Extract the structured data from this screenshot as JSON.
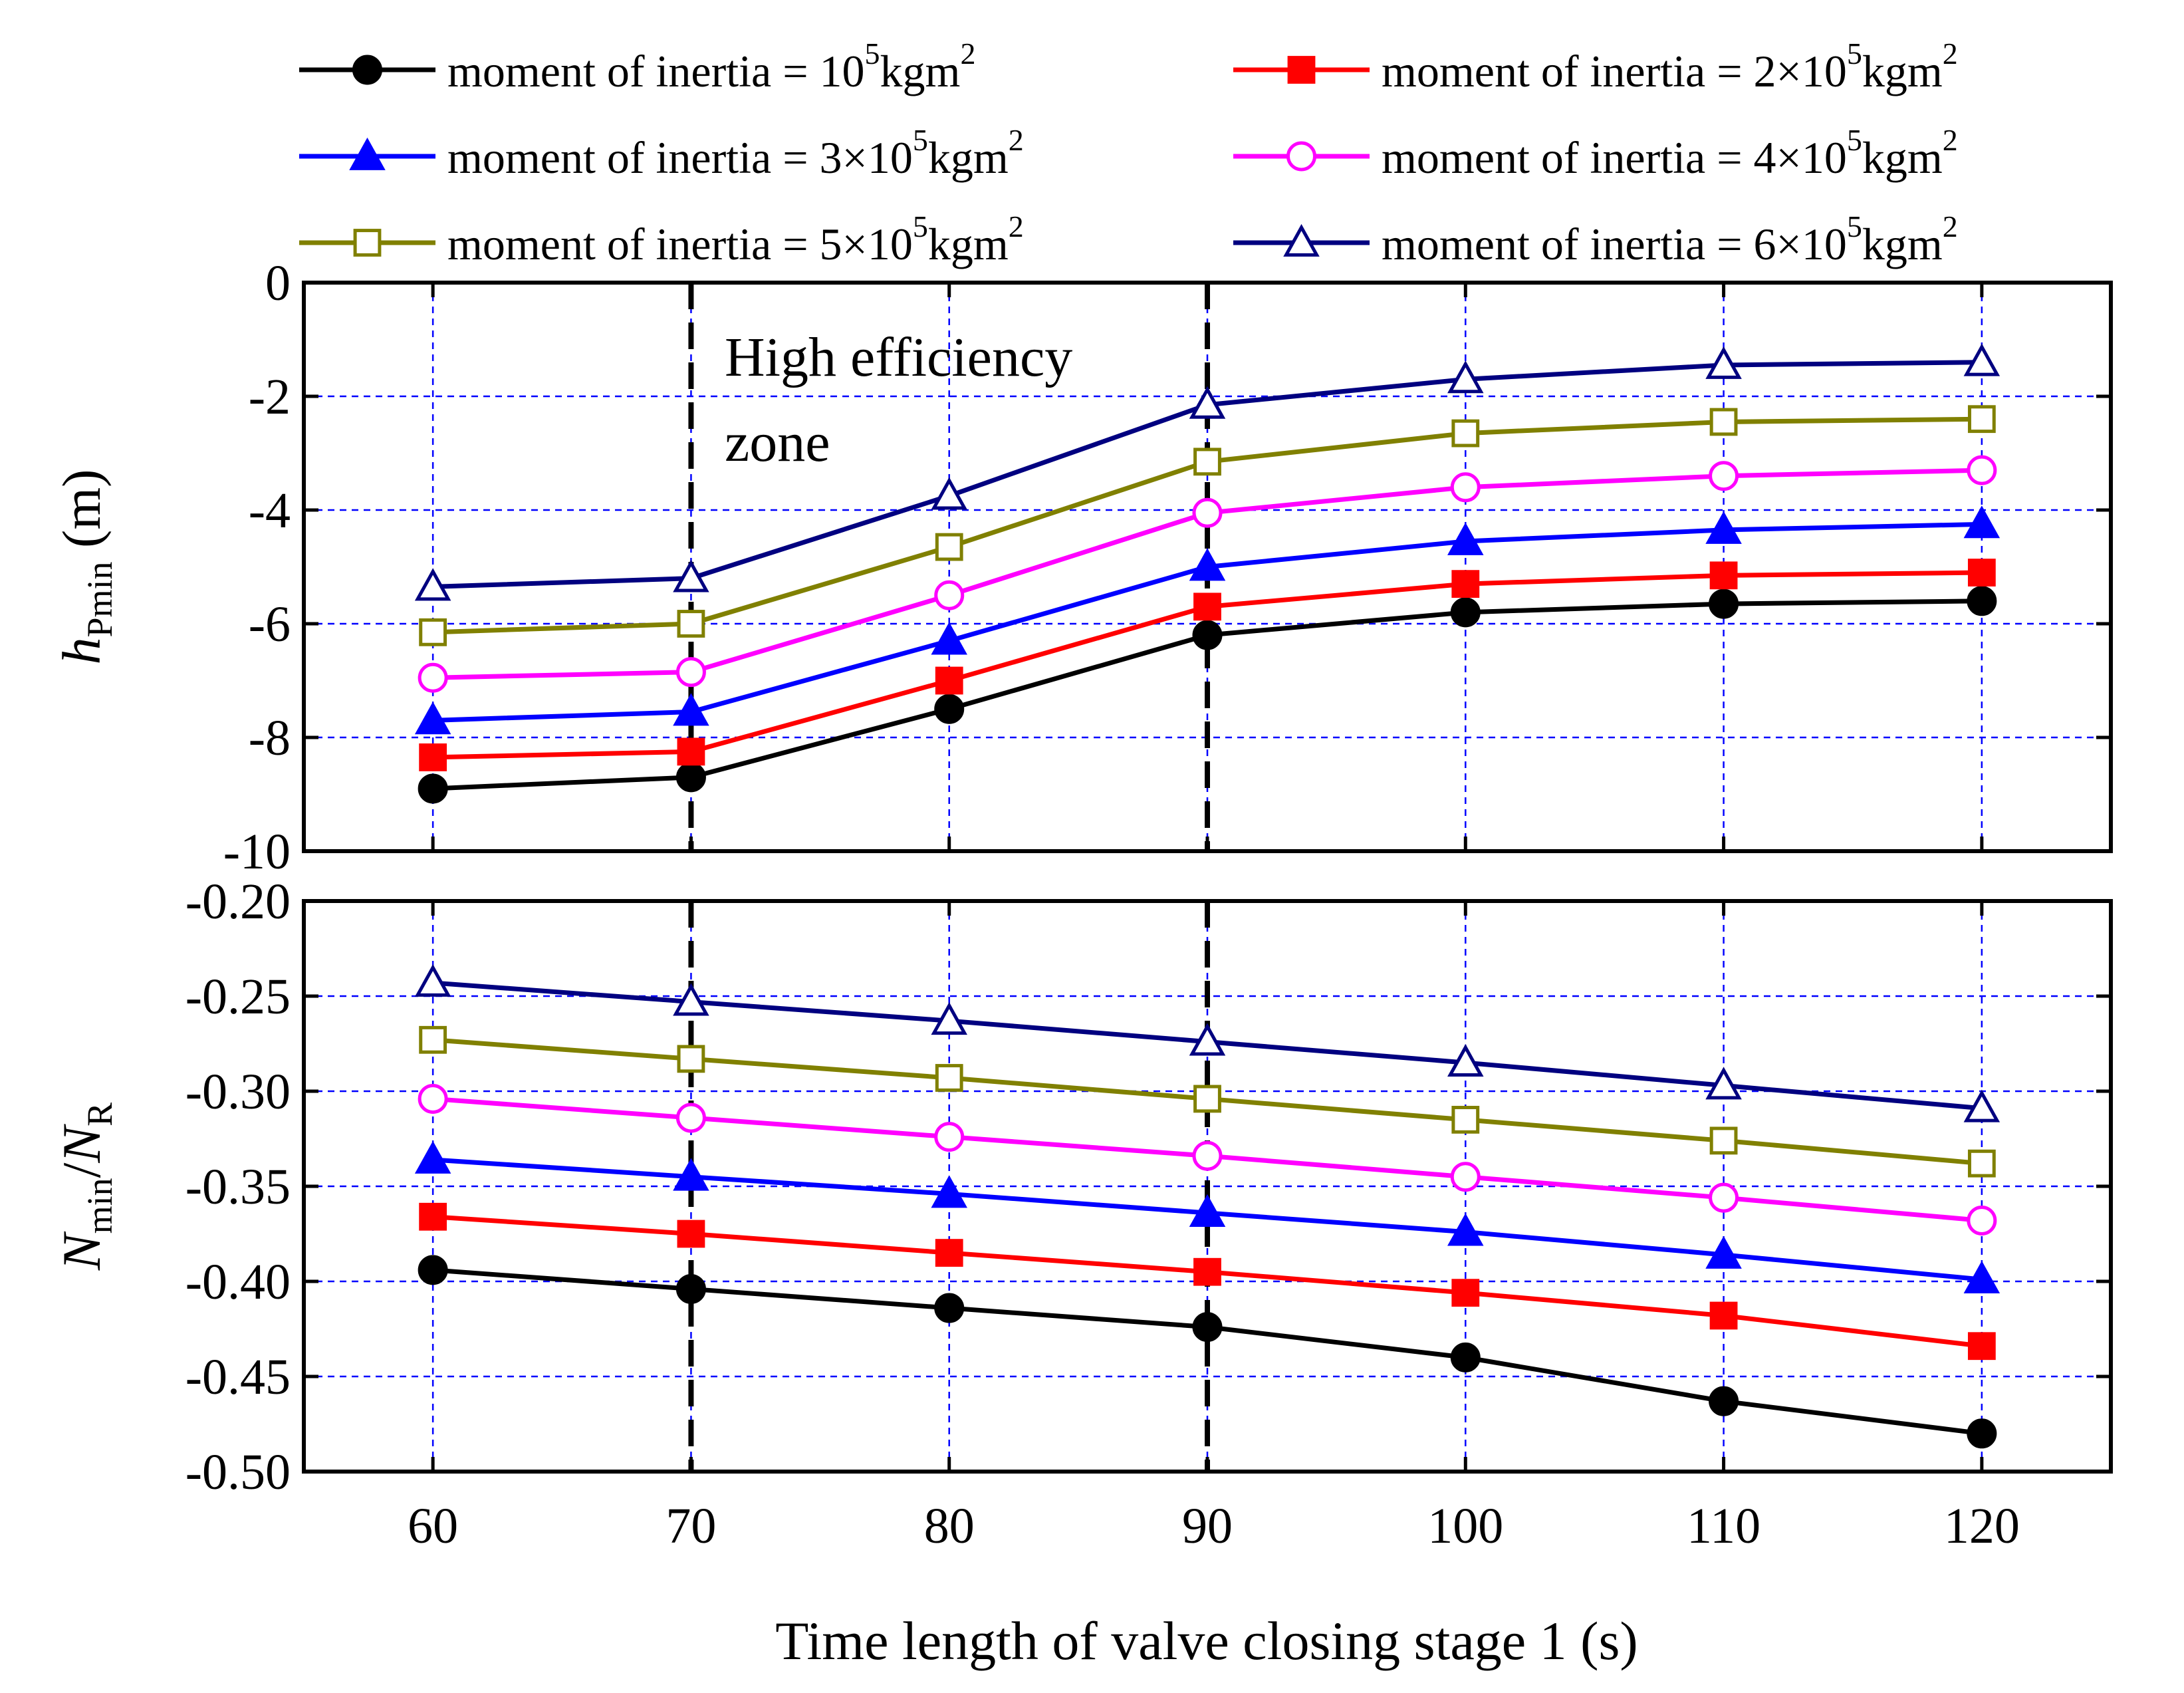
{
  "chart_data": {
    "type": "line",
    "xlabel": "Time length of valve closing stage 1 (s)",
    "x": [
      60,
      70,
      80,
      90,
      100,
      110,
      120
    ],
    "xticks": [
      "60",
      "70",
      "80",
      "90",
      "100",
      "110",
      "120"
    ],
    "xlim": [
      55,
      125
    ],
    "legend": {
      "position": "top",
      "prefix": "moment of inertia = ",
      "unit": "kgm",
      "unit_sup": "2",
      "times": "×",
      "base": "10",
      "exp": "5"
    },
    "series": [
      {
        "name": "moment of inertia = 10^5 kgm^2",
        "coef": "",
        "color": "#000000",
        "marker": "circle",
        "filled": true
      },
      {
        "name": "moment of inertia = 2×10^5 kgm^2",
        "coef": "2",
        "color": "#ff0000",
        "marker": "square",
        "filled": true
      },
      {
        "name": "moment of inertia = 3×10^5 kgm^2",
        "coef": "3",
        "color": "#0000ff",
        "marker": "triangle",
        "filled": true
      },
      {
        "name": "moment of inertia = 4×10^5 kgm^2",
        "coef": "4",
        "color": "#ff00ff",
        "marker": "circle",
        "filled": false
      },
      {
        "name": "moment of inertia = 5×10^5 kgm^2",
        "coef": "5",
        "color": "#808000",
        "marker": "square",
        "filled": false
      },
      {
        "name": "moment of inertia = 6×10^5 kgm^2",
        "coef": "6",
        "color": "#000080",
        "marker": "triangle",
        "filled": false
      }
    ],
    "panels": [
      {
        "id": "top",
        "ylabel_main": "h",
        "ylabel_sub": "Pmin",
        "ylabel_unit": "(m)",
        "ylim": [
          -10,
          0
        ],
        "yticks": [
          "0",
          "-2",
          "-4",
          "-6",
          "-8",
          "-10"
        ],
        "ytick_values": [
          0,
          -2,
          -4,
          -6,
          -8,
          -10
        ],
        "annotation": [
          "High efficiency",
          "zone"
        ],
        "values": [
          [
            -8.9,
            -8.7,
            -7.5,
            -6.2,
            -5.8,
            -5.65,
            -5.6
          ],
          [
            -8.35,
            -8.25,
            -7.0,
            -5.7,
            -5.3,
            -5.15,
            -5.1
          ],
          [
            -7.7,
            -7.55,
            -6.3,
            -5.0,
            -4.55,
            -4.35,
            -4.25
          ],
          [
            -6.95,
            -6.85,
            -5.5,
            -4.05,
            -3.6,
            -3.4,
            -3.3
          ],
          [
            -6.15,
            -6.0,
            -4.65,
            -3.15,
            -2.65,
            -2.45,
            -2.4
          ],
          [
            -5.35,
            -5.2,
            -3.75,
            -2.15,
            -1.7,
            -1.45,
            -1.4
          ]
        ]
      },
      {
        "id": "bottom",
        "ylabel_main": "N",
        "ylabel_sub": "min",
        "ylabel_div": "/N",
        "ylabel_sub2": "R",
        "ylim": [
          -0.5,
          -0.2
        ],
        "yticks": [
          "-0.20",
          "-0.25",
          "-0.30",
          "-0.35",
          "-0.40",
          "-0.45",
          "-0.50"
        ],
        "ytick_values": [
          -0.2,
          -0.25,
          -0.3,
          -0.35,
          -0.4,
          -0.45,
          -0.5
        ],
        "values": [
          [
            -0.394,
            -0.404,
            -0.414,
            -0.424,
            -0.44,
            -0.463,
            -0.48
          ],
          [
            -0.366,
            -0.375,
            -0.385,
            -0.395,
            -0.406,
            -0.418,
            -0.434
          ],
          [
            -0.336,
            -0.345,
            -0.354,
            -0.364,
            -0.374,
            -0.386,
            -0.399
          ],
          [
            -0.304,
            -0.314,
            -0.324,
            -0.334,
            -0.345,
            -0.356,
            -0.368
          ],
          [
            -0.273,
            -0.283,
            -0.293,
            -0.304,
            -0.315,
            -0.326,
            -0.338
          ],
          [
            -0.243,
            -0.253,
            -0.263,
            -0.274,
            -0.285,
            -0.297,
            -0.309
          ]
        ]
      }
    ],
    "zone_bounds": [
      70,
      90
    ]
  }
}
